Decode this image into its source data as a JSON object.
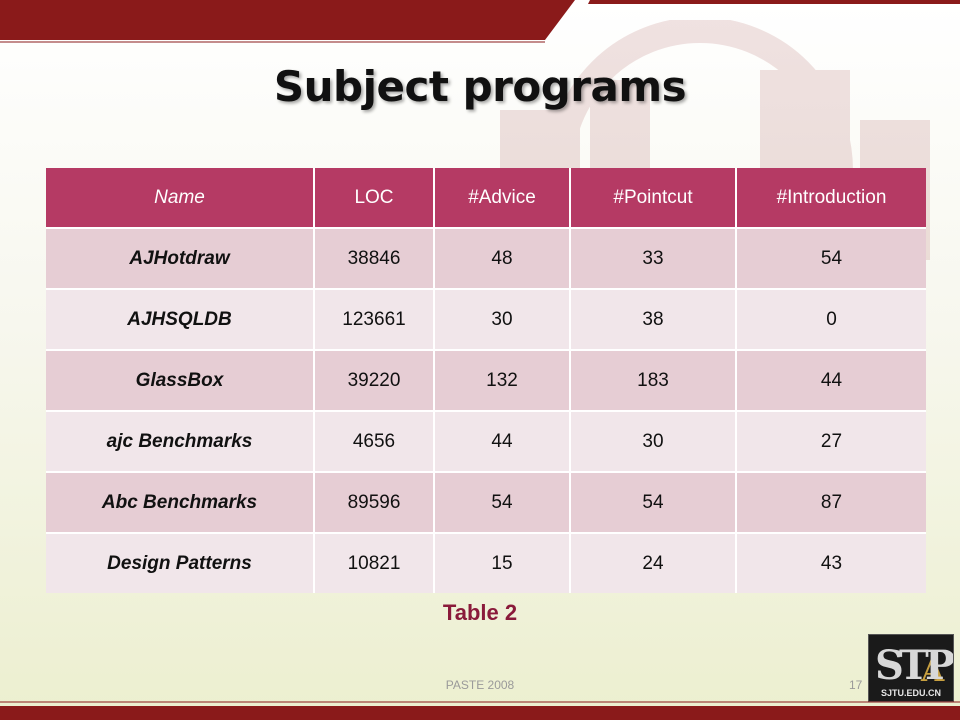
{
  "slide": {
    "title": "Subject programs",
    "caption": "Table 2",
    "footer": "PASTE 2008",
    "page_number": "17",
    "logo_text": "SJTU.EDU.CN"
  },
  "table": {
    "headers": [
      "Name",
      "LOC",
      "#Advice",
      "#Pointcut",
      "#Introduction"
    ],
    "rows": [
      {
        "name": "AJHotdraw",
        "loc": "38846",
        "advice": "48",
        "pointcut": "33",
        "introduction": "54"
      },
      {
        "name": "AJHSQLDB",
        "loc": "123661",
        "advice": "30",
        "pointcut": "38",
        "introduction": "0"
      },
      {
        "name": "GlassBox",
        "loc": "39220",
        "advice": "132",
        "pointcut": "183",
        "introduction": "44"
      },
      {
        "name": "ajc Benchmarks",
        "loc": "4656",
        "advice": "44",
        "pointcut": "30",
        "introduction": "27"
      },
      {
        "name": "Abc Benchmarks",
        "loc": "89596",
        "advice": "54",
        "pointcut": "54",
        "introduction": "87"
      },
      {
        "name": "Design Patterns",
        "loc": "10821",
        "advice": "15",
        "pointcut": "24",
        "introduction": "43"
      }
    ]
  },
  "colors": {
    "header_bg": "#b53a64",
    "row_odd": "#e6cdd4",
    "row_even": "#f1e6ea",
    "caption": "#8a1a3a",
    "accent_bar": "#8a1a1a"
  }
}
